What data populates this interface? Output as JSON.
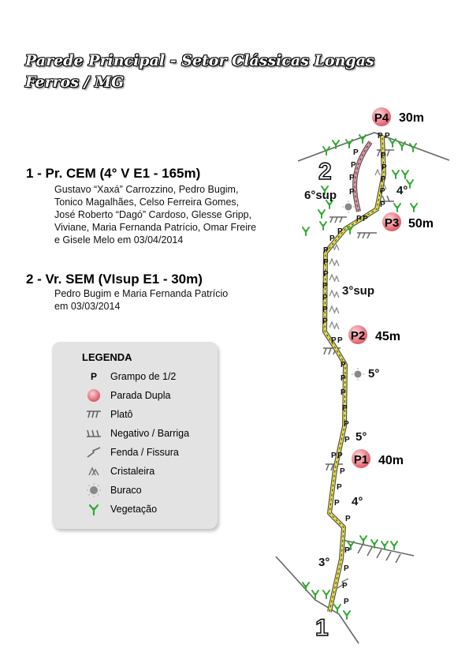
{
  "title": {
    "line1": "Parede Principal - Setor Clássicas Longas",
    "line2": "Ferros / MG"
  },
  "routes": [
    {
      "name": "1 - Pr. CEM (4° V E1 - 165m)",
      "credits": [
        "Gustavo “Xaxá” Carrozzino, Pedro Bugim,",
        "Tonico Magalhães, Celso Ferreira Gomes,",
        "José Roberto “Dagó” Cardoso, Glesse Gripp,",
        "Viviane, Maria Fernanda Patrício, Omar Freire",
        "e Gisele Melo em 03/04/2014"
      ]
    },
    {
      "name": "2 - Vr. SEM (VIsup E1 - 30m)",
      "credits": [
        "Pedro Bugim e Maria Fernanda Patrício",
        "em 03/03/2014"
      ]
    }
  ],
  "legend": {
    "title": "LEGENDA",
    "items": [
      {
        "symbol": "P",
        "label": "Grampo de 1/2",
        "icon": "bolt-icon"
      },
      {
        "symbol": "",
        "label": "Parada Dupla",
        "icon": "anchor-icon"
      },
      {
        "symbol": "",
        "label": "Platô",
        "icon": "ledge-icon"
      },
      {
        "symbol": "",
        "label": "Negativo / Barriga",
        "icon": "overhang-icon"
      },
      {
        "symbol": "",
        "label": "Fenda / Fissura",
        "icon": "crack-icon"
      },
      {
        "symbol": "",
        "label": "Cristaleira",
        "icon": "crystal-icon"
      },
      {
        "symbol": "",
        "label": "Buraco",
        "icon": "hole-icon"
      },
      {
        "symbol": "",
        "label": "Vegetação",
        "icon": "vegetation-icon"
      }
    ]
  },
  "topo": {
    "route_numbers": [
      "1",
      "2"
    ],
    "belays": [
      {
        "label": "P1",
        "length": "40m"
      },
      {
        "label": "P2",
        "length": "45m"
      },
      {
        "label": "P3",
        "length": "50m"
      },
      {
        "label": "P4",
        "length": "30m"
      }
    ],
    "grades": [
      "3°",
      "4°",
      "5°",
      "5°",
      "3°sup",
      "4°",
      "6°sup"
    ],
    "bolt_symbol": "P",
    "colors": {
      "route1_line": "#e8e04a",
      "route2_line": "#e69aa8",
      "belay_fill": "#e05a6a",
      "vegetation": "#33aa33",
      "terrain": "#666666"
    }
  }
}
